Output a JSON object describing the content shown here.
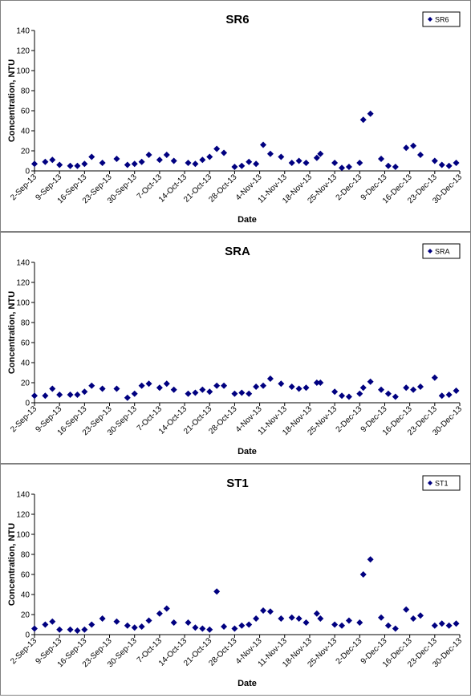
{
  "chart_data": [
    {
      "type": "scatter",
      "title": "SR6",
      "x_label": "Date",
      "y_label": "Concentration, NTU",
      "legend": "top-right",
      "xlim": [
        "2013-09-02",
        "2013-12-30"
      ],
      "xticks": [
        {
          "value": "2013-09-02",
          "label": "2-Sep-13"
        },
        {
          "value": "2013-09-09",
          "label": "9-Sep-13"
        },
        {
          "value": "2013-09-16",
          "label": "16-Sep-13"
        },
        {
          "value": "2013-09-23",
          "label": "23-Sep-13"
        },
        {
          "value": "2013-09-30",
          "label": "30-Sep-13"
        },
        {
          "value": "2013-10-07",
          "label": "7-Oct-13"
        },
        {
          "value": "2013-10-14",
          "label": "14-Oct-13"
        },
        {
          "value": "2013-10-21",
          "label": "21-Oct-13"
        },
        {
          "value": "2013-10-28",
          "label": "28-Oct-13"
        },
        {
          "value": "2013-11-04",
          "label": "4-Nov-13"
        },
        {
          "value": "2013-11-11",
          "label": "11-Nov-13"
        },
        {
          "value": "2013-11-18",
          "label": "18-Nov-13"
        },
        {
          "value": "2013-11-25",
          "label": "25-Nov-13"
        },
        {
          "value": "2013-12-02",
          "label": "2-Dec-13"
        },
        {
          "value": "2013-12-09",
          "label": "9-Dec-13"
        },
        {
          "value": "2013-12-16",
          "label": "16-Dec-13"
        },
        {
          "value": "2013-12-23",
          "label": "23-Dec-13"
        },
        {
          "value": "2013-12-30",
          "label": "30-Dec-13"
        }
      ],
      "ylim": [
        0,
        140
      ],
      "yticks": [
        0,
        20,
        40,
        60,
        80,
        100,
        120,
        140
      ],
      "x": [
        "2013-09-02",
        "2013-09-05",
        "2013-09-07",
        "2013-09-09",
        "2013-09-12",
        "2013-09-14",
        "2013-09-16",
        "2013-09-18",
        "2013-09-21",
        "2013-09-25",
        "2013-09-28",
        "2013-09-30",
        "2013-10-02",
        "2013-10-04",
        "2013-10-07",
        "2013-10-09",
        "2013-10-11",
        "2013-10-15",
        "2013-10-17",
        "2013-10-19",
        "2013-10-21",
        "2013-10-23",
        "2013-10-25",
        "2013-10-28",
        "2013-10-30",
        "2013-11-01",
        "2013-11-03",
        "2013-11-05",
        "2013-11-07",
        "2013-11-10",
        "2013-11-13",
        "2013-11-15",
        "2013-11-17",
        "2013-11-20",
        "2013-11-21",
        "2013-11-25",
        "2013-11-27",
        "2013-11-29",
        "2013-12-02",
        "2013-12-03",
        "2013-12-05",
        "2013-12-08",
        "2013-12-10",
        "2013-12-12",
        "2013-12-15",
        "2013-12-17",
        "2013-12-19",
        "2013-12-23",
        "2013-12-25",
        "2013-12-27",
        "2013-12-29"
      ],
      "series": [
        {
          "name": "SR6",
          "color": "#000080",
          "values": [
            7,
            9,
            11,
            6,
            5,
            5,
            7,
            14,
            8,
            12,
            6,
            7,
            9,
            16,
            11,
            16,
            10,
            8,
            7,
            11,
            14,
            22,
            18,
            4,
            5,
            9,
            7,
            26,
            17,
            14,
            8,
            10,
            8,
            13,
            17,
            8,
            3,
            4,
            8,
            51,
            57,
            12,
            5,
            4,
            23,
            25,
            16,
            10,
            6,
            5,
            8
          ]
        }
      ]
    },
    {
      "type": "scatter",
      "title": "SRA",
      "x_label": "Date",
      "y_label": "Concentration, NTU",
      "legend": "top-right",
      "xlim": [
        "2013-09-02",
        "2013-12-30"
      ],
      "xticks": [
        {
          "value": "2013-09-02",
          "label": "2-Sep-13"
        },
        {
          "value": "2013-09-09",
          "label": "9-Sep-13"
        },
        {
          "value": "2013-09-16",
          "label": "16-Sep-13"
        },
        {
          "value": "2013-09-23",
          "label": "23-Sep-13"
        },
        {
          "value": "2013-09-30",
          "label": "30-Sep-13"
        },
        {
          "value": "2013-10-07",
          "label": "7-Oct-13"
        },
        {
          "value": "2013-10-14",
          "label": "14-Oct-13"
        },
        {
          "value": "2013-10-21",
          "label": "21-Oct-13"
        },
        {
          "value": "2013-10-28",
          "label": "28-Oct-13"
        },
        {
          "value": "2013-11-04",
          "label": "4-Nov-13"
        },
        {
          "value": "2013-11-11",
          "label": "11-Nov-13"
        },
        {
          "value": "2013-11-18",
          "label": "18-Nov-13"
        },
        {
          "value": "2013-11-25",
          "label": "25-Nov-13"
        },
        {
          "value": "2013-12-02",
          "label": "2-Dec-13"
        },
        {
          "value": "2013-12-09",
          "label": "9-Dec-13"
        },
        {
          "value": "2013-12-16",
          "label": "16-Dec-13"
        },
        {
          "value": "2013-12-23",
          "label": "23-Dec-13"
        },
        {
          "value": "2013-12-30",
          "label": "30-Dec-13"
        }
      ],
      "ylim": [
        0,
        140
      ],
      "yticks": [
        0,
        20,
        40,
        60,
        80,
        100,
        120,
        140
      ],
      "x": [
        "2013-09-02",
        "2013-09-05",
        "2013-09-07",
        "2013-09-09",
        "2013-09-12",
        "2013-09-14",
        "2013-09-16",
        "2013-09-18",
        "2013-09-21",
        "2013-09-25",
        "2013-09-28",
        "2013-09-30",
        "2013-10-02",
        "2013-10-04",
        "2013-10-07",
        "2013-10-09",
        "2013-10-11",
        "2013-10-15",
        "2013-10-17",
        "2013-10-19",
        "2013-10-21",
        "2013-10-23",
        "2013-10-25",
        "2013-10-28",
        "2013-10-30",
        "2013-11-01",
        "2013-11-03",
        "2013-11-05",
        "2013-11-07",
        "2013-11-10",
        "2013-11-13",
        "2013-11-15",
        "2013-11-17",
        "2013-11-20",
        "2013-11-21",
        "2013-11-25",
        "2013-11-27",
        "2013-11-29",
        "2013-12-02",
        "2013-12-03",
        "2013-12-05",
        "2013-12-08",
        "2013-12-10",
        "2013-12-12",
        "2013-12-15",
        "2013-12-17",
        "2013-12-19",
        "2013-12-23",
        "2013-12-25",
        "2013-12-27",
        "2013-12-29"
      ],
      "series": [
        {
          "name": "SRA",
          "color": "#000080",
          "values": [
            7,
            7,
            14,
            8,
            8,
            8,
            11,
            17,
            14,
            14,
            5,
            9,
            17,
            19,
            15,
            19,
            13,
            9,
            10,
            13,
            11,
            17,
            17,
            9,
            10,
            9,
            16,
            17,
            24,
            19,
            16,
            14,
            15,
            20,
            20,
            11,
            7,
            6,
            9,
            15,
            21,
            13,
            9,
            6,
            15,
            13,
            16,
            25,
            7,
            8,
            12
          ]
        }
      ]
    },
    {
      "type": "scatter",
      "title": "ST1",
      "x_label": "Date",
      "y_label": "Concentration, NTU",
      "legend": "top-right",
      "xlim": [
        "2013-09-02",
        "2013-12-30"
      ],
      "xticks": [
        {
          "value": "2013-09-02",
          "label": "2-Sep-13"
        },
        {
          "value": "2013-09-09",
          "label": "9-Sep-13"
        },
        {
          "value": "2013-09-16",
          "label": "16-Sep-13"
        },
        {
          "value": "2013-09-23",
          "label": "23-Sep-13"
        },
        {
          "value": "2013-09-30",
          "label": "30-Sep-13"
        },
        {
          "value": "2013-10-07",
          "label": "7-Oct-13"
        },
        {
          "value": "2013-10-14",
          "label": "14-Oct-13"
        },
        {
          "value": "2013-10-21",
          "label": "21-Oct-13"
        },
        {
          "value": "2013-10-28",
          "label": "28-Oct-13"
        },
        {
          "value": "2013-11-04",
          "label": "4-Nov-13"
        },
        {
          "value": "2013-11-11",
          "label": "11-Nov-13"
        },
        {
          "value": "2013-11-18",
          "label": "18-Nov-13"
        },
        {
          "value": "2013-11-25",
          "label": "25-Nov-13"
        },
        {
          "value": "2013-12-02",
          "label": "2-Dec-13"
        },
        {
          "value": "2013-12-09",
          "label": "9-Dec-13"
        },
        {
          "value": "2013-12-16",
          "label": "16-Dec-13"
        },
        {
          "value": "2013-12-23",
          "label": "23-Dec-13"
        },
        {
          "value": "2013-12-30",
          "label": "30-Dec-13"
        }
      ],
      "ylim": [
        0,
        140
      ],
      "yticks": [
        0,
        20,
        40,
        60,
        80,
        100,
        120,
        140
      ],
      "x": [
        "2013-09-02",
        "2013-09-05",
        "2013-09-07",
        "2013-09-09",
        "2013-09-12",
        "2013-09-14",
        "2013-09-16",
        "2013-09-18",
        "2013-09-21",
        "2013-09-25",
        "2013-09-28",
        "2013-09-30",
        "2013-10-02",
        "2013-10-04",
        "2013-10-07",
        "2013-10-09",
        "2013-10-11",
        "2013-10-15",
        "2013-10-17",
        "2013-10-19",
        "2013-10-21",
        "2013-10-23",
        "2013-10-25",
        "2013-10-28",
        "2013-10-30",
        "2013-11-01",
        "2013-11-03",
        "2013-11-05",
        "2013-11-07",
        "2013-11-10",
        "2013-11-13",
        "2013-11-15",
        "2013-11-17",
        "2013-11-20",
        "2013-11-21",
        "2013-11-25",
        "2013-11-27",
        "2013-11-29",
        "2013-12-02",
        "2013-12-03",
        "2013-12-05",
        "2013-12-08",
        "2013-12-10",
        "2013-12-12",
        "2013-12-15",
        "2013-12-17",
        "2013-12-19",
        "2013-12-23",
        "2013-12-25",
        "2013-12-27",
        "2013-12-29"
      ],
      "series": [
        {
          "name": "ST1",
          "color": "#000080",
          "values": [
            6,
            10,
            13,
            5,
            5,
            4,
            5,
            10,
            16,
            13,
            9,
            7,
            8,
            14,
            21,
            26,
            12,
            12,
            7,
            6,
            5,
            43,
            8,
            6,
            9,
            10,
            16,
            24,
            23,
            16,
            17,
            16,
            12,
            21,
            16,
            10,
            9,
            14,
            12,
            60,
            75,
            17,
            9,
            6,
            25,
            16,
            19,
            9,
            11,
            9,
            11
          ]
        }
      ]
    }
  ]
}
